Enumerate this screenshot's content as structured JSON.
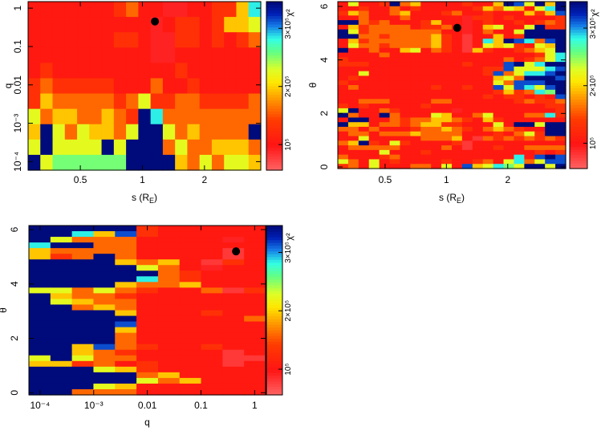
{
  "colorbar": {
    "label": "χ²",
    "range": [
      56000,
      346000
    ],
    "ticks": [
      {
        "value": 100000,
        "label": "10⁵"
      },
      {
        "value": 200000,
        "label": "2×10⁵"
      },
      {
        "value": 300000,
        "label": "3×10⁵"
      }
    ]
  },
  "code_values": {
    "p": 80000,
    "d": 92000,
    "r": 105000,
    "o": 130000,
    "O": 160000,
    "y": 195000,
    "g": 225000,
    "G": 255000,
    "c": 285000,
    "l": 315000,
    "b": 345000
  },
  "chart_data": [
    {
      "type": "heatmap",
      "title": "",
      "xlabel": "s (R_E)",
      "xlabel_main": "s (R",
      "xlabel_sub": "E",
      "xlabel_end": ")",
      "ylabel": "q",
      "xscale": "log",
      "yscale": "log",
      "xlim": [
        0.279,
        3.75
      ],
      "ylim": [
        6e-05,
        1.48
      ],
      "xticks": [
        {
          "value": 0.5,
          "label": "0.5"
        },
        {
          "value": 1,
          "label": "1"
        },
        {
          "value": 2,
          "label": "2"
        }
      ],
      "yticks": [
        {
          "value": 0.0001,
          "label": "10⁻⁴"
        },
        {
          "value": 0.001,
          "label": "10⁻³"
        },
        {
          "value": 0.01,
          "label": "0.01"
        },
        {
          "value": 0.1,
          "label": "0.1"
        },
        {
          "value": 1,
          "label": "1"
        }
      ],
      "best_fit": {
        "x": 1.15,
        "y": 0.45
      },
      "grid_rows_top_to_bottom": [
        "rrrrrrroOrrddrrooyc",
        "rrrrrrrrrrdrooroyyg",
        "rrrrrrroorddoororoO",
        "rrrrrrrrrrddrrrrrrr",
        "rorrrrrrrrrrorrrrrr",
        "oOooooorrrOrrorrrrr",
        "oyOOOOOoOgooOOooooO",
        "gOyyOOyOobcOOOOOOOO",
        "ybgOgyyOgbbgOyOOOOb",
        "gbggggbgbbbOgOOyyyO",
        "bgGGGGGGbbbbyOgOggy"
      ]
    },
    {
      "type": "heatmap",
      "title": "",
      "xlabel": "s (R_E)",
      "xlabel_main": "s (R",
      "xlabel_sub": "E",
      "xlabel_end": ")",
      "ylabel": "θ",
      "xscale": "log",
      "yscale": "linear",
      "xlim": [
        0.293,
        3.85
      ],
      "ylim": [
        -0.06,
        6.18
      ],
      "xticks": [
        {
          "value": 0.5,
          "label": "0.5"
        },
        {
          "value": 1,
          "label": "1"
        },
        {
          "value": 2,
          "label": "2"
        }
      ],
      "yticks": [
        {
          "value": 0,
          "label": "0"
        },
        {
          "value": 2,
          "label": "2"
        },
        {
          "value": 4,
          "label": "4"
        },
        {
          "value": 6,
          "label": "6"
        }
      ],
      "best_fit": {
        "x": 1.13,
        "y": 5.2
      },
      "grid_rows_top_to_bottom": [
        "rgrrobOyrrrrorryblgbyb",
        "rrorrOrorrrrroyOgyrgcb",
        "oyOrrOyrrroOrrorrryoyl",
        "rrOrrrOrrrrrdoororrrro",
        "bbOoOrrroyrrdrorroroOo",
        "ryoOOOOrooOrdrygrrgboo",
        "bgoOOOOOOOrrdrOrrgbbbb",
        "bbOOoOOOOyorprryrobbbb",
        "ryoOOOOOOyorprcyblcOlb",
        "rgOOoOOOOyorprgygorgyb",
        "brrOrrygrOorpyorroOygb",
        "rrrrOrrrrrrrrrrrrrrogc",
        "orrrrrrrrrrrrrrrOroOgc",
        "ooorrrrrrrrrorrrlbgcbb",
        "rrrrrrrrrrrrrroolgggcl",
        "rrgrrrrrrrrrrrolOgcclb",
        "rorrrrrrrrrrrrrygObbbl",
        "orrrrrrrrrrrrrrgOlllbb",
        "rOrrrrrrrorrorrlglcglb",
        "rrrrrrrrrrrrrrroyoOcGb",
        "rrrrrrrrrrrrrroroororl",
        "rrOOOrrrrOOrrrrrroOooO",
        "ororrrrrorrrrrrrrrrroo",
        "gbrrOorrrrrdrrrrrrrrro",
        "bOrrbOrrrgyrrOgrrrOOco",
        "rbbrrOoOOyyOoryorrrrrr",
        "byyrOOoOyyoorrrgrbbgbb",
        "OOrOrrroOOyOorOyOorrbb",
        "rOOrOOOyOOOOrrrorOgobb",
        "rrgrrrrrOOOyrpOoOoOoOo",
        "Oyborgorrrroprrrrrrrrr",
        "rOOOOOrrrrOrprrorrOOOO",
        "rrrrgrrrorrrrrrrrrroro",
        "OrrroOrrrrrrrrrrrcrlbl",
        "gOrgrorrrrorroOrgcOgll",
        "oOrgrrrOOrgrlygcGgbbgb"
      ]
    },
    {
      "type": "heatmap",
      "title": "",
      "xlabel": "q",
      "ylabel": "θ",
      "xscale": "log",
      "yscale": "linear",
      "xlim": [
        6.2e-05,
        1.6
      ],
      "ylim": [
        -0.08,
        6.15
      ],
      "xticks": [
        {
          "value": 0.0001,
          "label": "10⁻⁴"
        },
        {
          "value": 0.001,
          "label": "10⁻³"
        },
        {
          "value": 0.01,
          "label": "0.01"
        },
        {
          "value": 0.1,
          "label": "0.1"
        },
        {
          "value": 1,
          "label": "1"
        }
      ],
      "yticks": [
        {
          "value": 0,
          "label": "0"
        },
        {
          "value": 2,
          "label": "2"
        },
        {
          "value": 4,
          "label": "4"
        },
        {
          "value": 6,
          "label": "6"
        }
      ],
      "best_fit": {
        "x": 0.45,
        "y": 5.2
      },
      "grid_rows_top_to_bottom": [
        "bbbbborrrrr",
        "bbcylorrrrr",
        "bgOOOrrrrdr",
        "cbbOOrrrrrr",
        "yOOOOrrrrpr",
        "yoObOrrrrpr",
        "bbbbyOyrpor",
        "bbbbbgOrdrr",
        "bbbbbbOorrr",
        "bbbbbcOorrr",
        "bbbbyOOyrrr",
        "ggOgOorrOpo",
        "byOOorrrrrr",
        "bgyOOrrrrrr",
        "bbOyOrrrrrr",
        "bbbbyrrrorr",
        "bbbbbrrrrrO",
        "bbbblrrrrrr",
        "bbbbyrrrrrr",
        "bbbbOrrrrrr",
        "bbbbOrrrrrr",
        "bbylOorrorr",
        "bbyOorrrrpr",
        "gbgOOrrrrpp",
        "yyoOrorrrpr",
        "bbbgyorrrrr",
        "bbbbbOyrrrr",
        "bbbbbgOyrrr",
        "bbbgyrrrrrr",
        "bbOOOrrrrrr"
      ]
    }
  ]
}
